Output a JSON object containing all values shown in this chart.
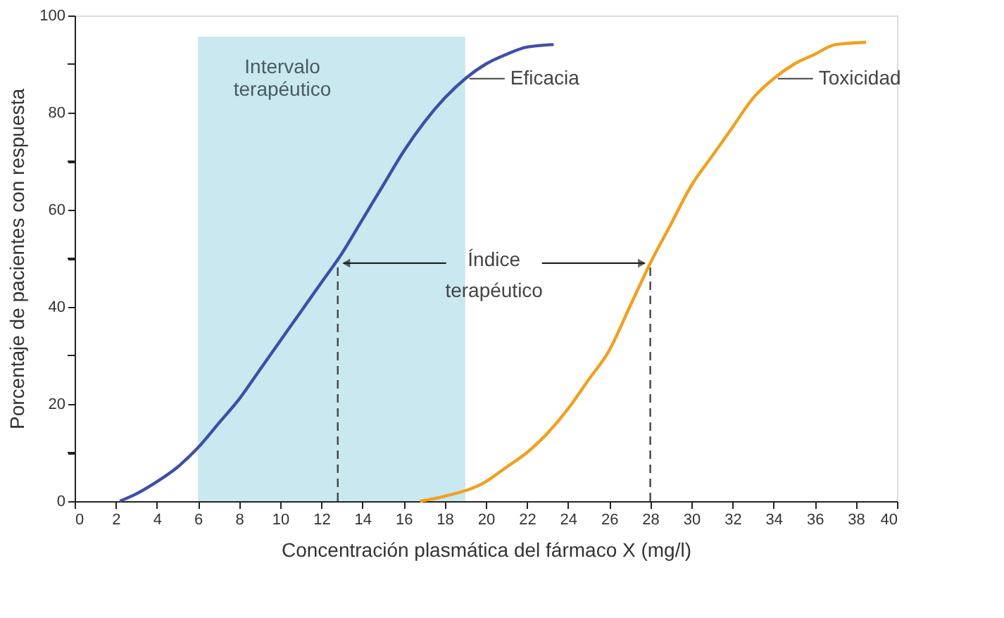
{
  "chart_data": {
    "type": "line",
    "xlabel": "Concentración plasmática del fármaco X (mg/l)",
    "ylabel": "Porcentaje de pacientes con respuesta",
    "xlim": [
      0,
      40
    ],
    "ylim": [
      0,
      100
    ],
    "xticks": [
      0,
      2,
      4,
      6,
      8,
      10,
      12,
      14,
      16,
      18,
      20,
      22,
      24,
      26,
      28,
      30,
      32,
      34,
      36,
      38,
      40
    ],
    "yticks": [
      0,
      {
        "value": 10,
        "label": null
      },
      20,
      {
        "value": 30,
        "label": null
      },
      40,
      {
        "value": 50,
        "label": null
      },
      60,
      {
        "value": 70,
        "label": null
      },
      80,
      {
        "value": 90,
        "label": null
      },
      100
    ],
    "grid": false,
    "legend": false,
    "marker": "none",
    "line_style": "solid",
    "series": [
      {
        "name": "Eficacia",
        "color": "#3d4fa8",
        "x": [
          2.2,
          3,
          4,
          5,
          6,
          7,
          8,
          9,
          10,
          11,
          12,
          13,
          14,
          15,
          16,
          17,
          18,
          19,
          20,
          21,
          22,
          23.3
        ],
        "values": [
          0,
          1.5,
          4,
          7,
          11,
          16,
          21,
          27,
          33,
          39,
          45,
          51,
          58,
          65,
          72,
          78,
          83,
          87,
          90,
          92,
          93.5,
          94
        ]
      },
      {
        "name": "Toxicidad",
        "color": "#f0a020",
        "x": [
          16.8,
          18,
          20,
          21,
          22,
          23,
          24,
          25,
          26,
          27,
          28,
          29,
          30,
          31,
          32,
          33,
          34,
          35,
          36,
          37,
          38.5
        ],
        "values": [
          0,
          1,
          4,
          7,
          10,
          14,
          19,
          25,
          31,
          40,
          49,
          57,
          65,
          71,
          77,
          83,
          87,
          90,
          92,
          94,
          94.5
        ]
      }
    ],
    "bands": [
      {
        "axis": "x",
        "from": 6,
        "to": 19,
        "label": "Intervalo\nterapéutico",
        "color": "#c4e6ee"
      }
    ],
    "ref_lines": [
      {
        "axis": "x",
        "value": 12.8,
        "line_style": "dashed"
      },
      {
        "axis": "x",
        "value": 28,
        "line_style": "dashed"
      }
    ],
    "annotations": [
      {
        "text": "Índice\nterapéutico",
        "x": 28,
        "y": 49
      }
    ]
  }
}
